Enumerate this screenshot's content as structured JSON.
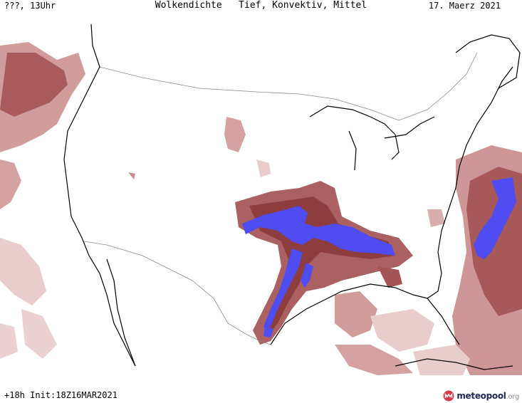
{
  "header": {
    "left": "???, 13Uhr",
    "title": "Wolkendichte   Tief, Konvektiv, Mittel",
    "date": "17. Maerz 2021"
  },
  "footer": {
    "run": "+18h Init:18Z16MAR2021"
  },
  "brand": {
    "name": "meteopool",
    "tld": ".org",
    "icon": "meteopool-logo-icon"
  },
  "legend_colors": {
    "cloud_light": "#e9cccc",
    "cloud_mid": "#c98b8b",
    "cloud_dense": "#a45454",
    "cloud_max": "#8a3a3a",
    "convective": "#4f4cf2",
    "coastline": "#000000",
    "border": "#8a8a8a"
  }
}
